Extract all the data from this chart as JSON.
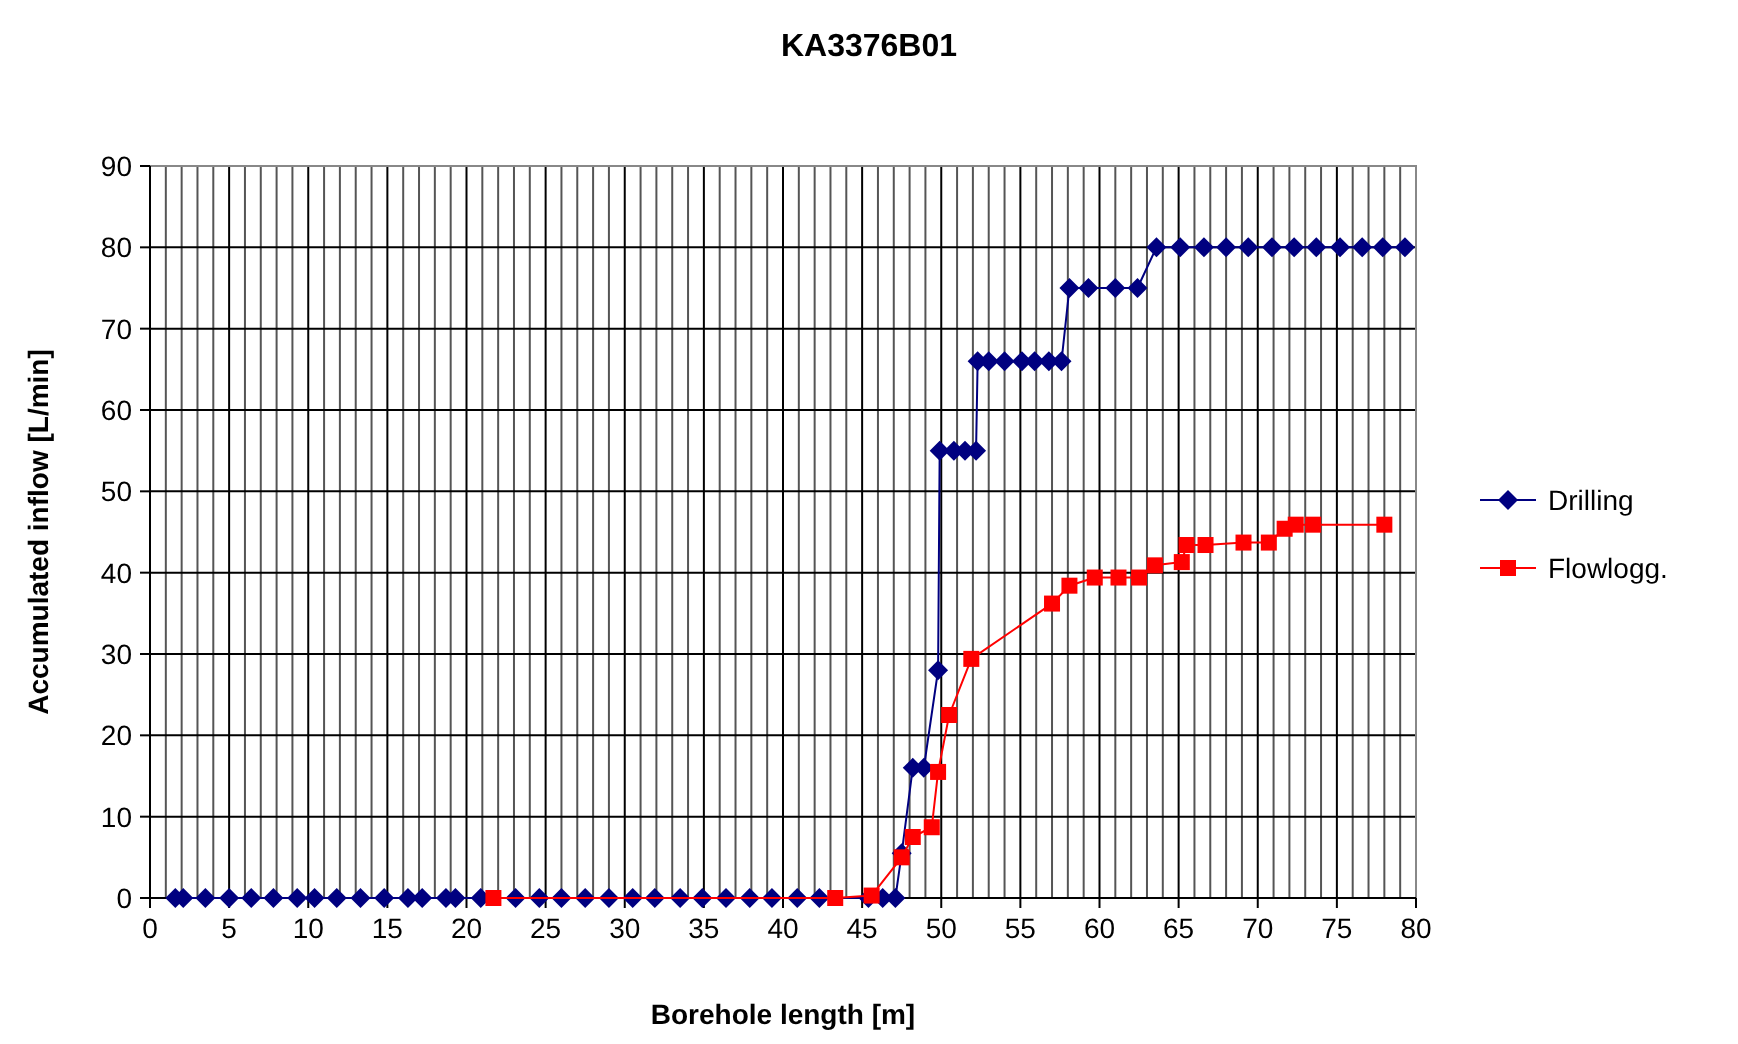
{
  "chart_data": {
    "type": "line",
    "title": "KA3376B01",
    "xlabel": "Borehole length [m]",
    "ylabel": "Accumulated inflow [L/min]",
    "xlim": [
      0,
      80
    ],
    "ylim": [
      0,
      90
    ],
    "xticks": [
      0,
      {
        "value": 1,
        "label": null
      },
      {
        "value": 2,
        "label": null
      },
      {
        "value": 3,
        "label": null
      },
      {
        "value": 4,
        "label": null
      },
      5,
      {
        "value": 6,
        "label": null
      },
      {
        "value": 7,
        "label": null
      },
      {
        "value": 8,
        "label": null
      },
      {
        "value": 9,
        "label": null
      },
      10,
      {
        "value": 11,
        "label": null
      },
      {
        "value": 12,
        "label": null
      },
      {
        "value": 13,
        "label": null
      },
      {
        "value": 14,
        "label": null
      },
      15,
      {
        "value": 16,
        "label": null
      },
      {
        "value": 17,
        "label": null
      },
      {
        "value": 18,
        "label": null
      },
      {
        "value": 19,
        "label": null
      },
      20,
      {
        "value": 21,
        "label": null
      },
      {
        "value": 22,
        "label": null
      },
      {
        "value": 23,
        "label": null
      },
      {
        "value": 24,
        "label": null
      },
      25,
      {
        "value": 26,
        "label": null
      },
      {
        "value": 27,
        "label": null
      },
      {
        "value": 28,
        "label": null
      },
      {
        "value": 29,
        "label": null
      },
      30,
      {
        "value": 31,
        "label": null
      },
      {
        "value": 32,
        "label": null
      },
      {
        "value": 33,
        "label": null
      },
      {
        "value": 34,
        "label": null
      },
      35,
      {
        "value": 36,
        "label": null
      },
      {
        "value": 37,
        "label": null
      },
      {
        "value": 38,
        "label": null
      },
      {
        "value": 39,
        "label": null
      },
      40,
      {
        "value": 41,
        "label": null
      },
      {
        "value": 42,
        "label": null
      },
      {
        "value": 43,
        "label": null
      },
      {
        "value": 44,
        "label": null
      },
      45,
      {
        "value": 46,
        "label": null
      },
      {
        "value": 47,
        "label": null
      },
      {
        "value": 48,
        "label": null
      },
      {
        "value": 49,
        "label": null
      },
      50,
      {
        "value": 51,
        "label": null
      },
      {
        "value": 52,
        "label": null
      },
      {
        "value": 53,
        "label": null
      },
      {
        "value": 54,
        "label": null
      },
      55,
      {
        "value": 56,
        "label": null
      },
      {
        "value": 57,
        "label": null
      },
      {
        "value": 58,
        "label": null
      },
      {
        "value": 59,
        "label": null
      },
      60,
      {
        "value": 61,
        "label": null
      },
      {
        "value": 62,
        "label": null
      },
      {
        "value": 63,
        "label": null
      },
      {
        "value": 64,
        "label": null
      },
      65,
      {
        "value": 66,
        "label": null
      },
      {
        "value": 67,
        "label": null
      },
      {
        "value": 68,
        "label": null
      },
      {
        "value": 69,
        "label": null
      },
      70,
      {
        "value": 71,
        "label": null
      },
      {
        "value": 72,
        "label": null
      },
      {
        "value": 73,
        "label": null
      },
      {
        "value": 74,
        "label": null
      },
      75,
      {
        "value": 76,
        "label": null
      },
      {
        "value": 77,
        "label": null
      },
      {
        "value": 78,
        "label": null
      },
      {
        "value": 79,
        "label": null
      },
      80
    ],
    "yticks": [
      0,
      10,
      20,
      30,
      40,
      50,
      60,
      70,
      80,
      90
    ],
    "grid": true,
    "legend": "right",
    "line_style": "solid",
    "series": [
      {
        "name": "Drilling",
        "color": "#000080",
        "marker": "diamond",
        "x": [
          1.6,
          2.1,
          3.5,
          5.0,
          6.4,
          7.8,
          9.3,
          10.4,
          11.8,
          13.3,
          14.8,
          16.3,
          17.2,
          18.7,
          19.3,
          20.9,
          23.1,
          24.6,
          26.0,
          27.5,
          29.0,
          30.5,
          31.9,
          33.5,
          34.9,
          36.4,
          37.9,
          39.3,
          40.9,
          42.3,
          45.4,
          46.3,
          47.1,
          47.5,
          48.2,
          48.9,
          49.8,
          49.9,
          50.8,
          51.5,
          52.2,
          52.3,
          53.0,
          54.0,
          55.1,
          55.9,
          56.8,
          57.6,
          58.1,
          59.3,
          61.0,
          62.4,
          63.6,
          65.1,
          66.6,
          68.0,
          69.4,
          70.9,
          72.3,
          73.7,
          75.2,
          76.6,
          77.9,
          79.3
        ],
        "values": [
          0,
          0,
          0,
          0,
          0,
          0,
          0,
          0,
          0,
          0,
          0,
          0,
          0,
          0,
          0,
          0,
          0,
          0,
          0,
          0,
          0,
          0,
          0,
          0,
          0,
          0,
          0,
          0,
          0,
          0,
          0,
          0,
          0,
          5.5,
          16,
          16,
          28,
          55,
          55,
          55,
          55,
          66,
          66,
          66,
          66,
          66,
          66,
          66,
          75,
          75,
          75,
          75,
          80,
          80,
          80,
          80,
          80,
          80,
          80,
          80,
          80,
          80,
          80,
          80
        ]
      },
      {
        "name": "Flowlogg.",
        "color": "#ff0000",
        "marker": "square",
        "x": [
          21.7,
          43.3,
          45.6,
          47.5,
          48.2,
          49.4,
          49.8,
          50.5,
          51.9,
          57.0,
          58.1,
          59.7,
          61.2,
          62.5,
          63.5,
          65.2,
          65.5,
          66.7,
          69.1,
          70.7,
          71.7,
          72.4,
          73.5,
          78.0
        ],
        "values": [
          0,
          0,
          0.3,
          5,
          7.5,
          8.7,
          15.5,
          22.5,
          29.4,
          36.2,
          38.4,
          39.4,
          39.4,
          39.4,
          40.9,
          41.3,
          43.4,
          43.4,
          43.7,
          43.7,
          45.4,
          45.9,
          45.9,
          45.9
        ]
      }
    ]
  }
}
